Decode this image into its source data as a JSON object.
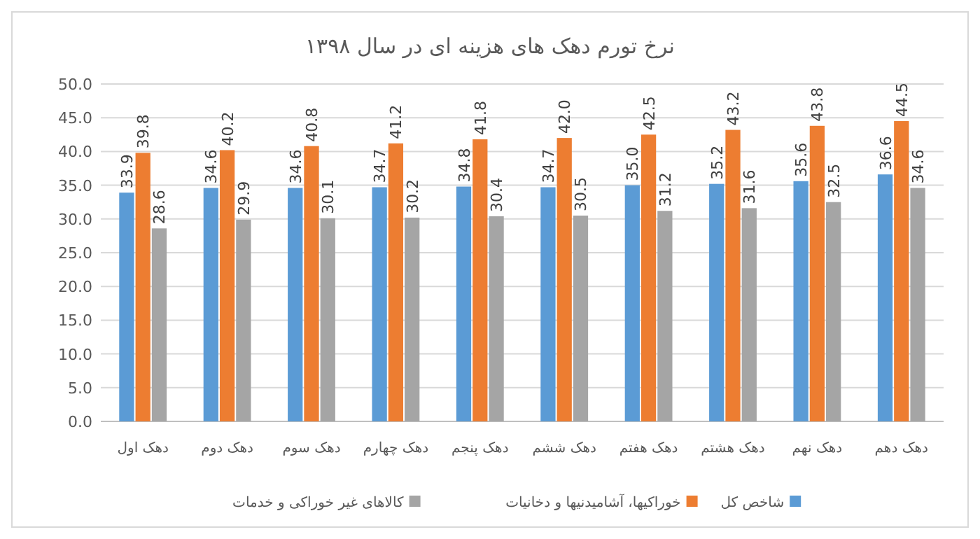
{
  "chart_data": {
    "type": "bar",
    "title": "نرخ تورم دهک های هزینه ای در سال ۱۳۹۸",
    "categories": [
      "دهک اول",
      "دهک دوم",
      "دهک سوم",
      "دهک چهارم",
      "دهک پنجم",
      "دهک ششم",
      "دهک هفتم",
      "دهک هشتم",
      "دهک نهم",
      "دهک دهم"
    ],
    "series": [
      {
        "name": "شاخص کل",
        "color": "#5b9bd5",
        "values": [
          33.9,
          34.6,
          34.6,
          34.7,
          34.8,
          34.7,
          35.0,
          35.2,
          35.6,
          36.6
        ],
        "value_labels": [
          "33.9",
          "34.6",
          "34.6",
          "34.7",
          "34.8",
          "34.7",
          "35.0",
          "35.2",
          "35.6",
          "36.6"
        ]
      },
      {
        "name": "خوراکیها، آشامیدنیها و دخانیات",
        "color": "#ed7d31",
        "values": [
          39.8,
          40.2,
          40.8,
          41.2,
          41.8,
          42.0,
          42.5,
          43.2,
          43.8,
          44.5
        ],
        "value_labels": [
          "39.8",
          "40.2",
          "40.8",
          "41.2",
          "41.8",
          "42.0",
          "42.5",
          "43.2",
          "43.8",
          "44.5"
        ]
      },
      {
        "name": "کالاهای غیر خوراکی و خدمات",
        "color": "#a5a5a5",
        "values": [
          28.6,
          29.9,
          30.1,
          30.2,
          30.4,
          30.5,
          31.2,
          31.6,
          32.5,
          34.6
        ],
        "value_labels": [
          "28.6",
          "29.9",
          "30.1",
          "30.2",
          "30.4",
          "30.5",
          "31.2",
          "31.6",
          "32.5",
          "34.6"
        ]
      }
    ],
    "ylim": [
      0,
      50
    ],
    "yticks": [
      {
        "value": 0,
        "label": "0.0"
      },
      {
        "value": 5,
        "label": "5.0"
      },
      {
        "value": 10,
        "label": "10.0"
      },
      {
        "value": 15,
        "label": "15.0"
      },
      {
        "value": 20,
        "label": "20.0"
      },
      {
        "value": 25,
        "label": "25.0"
      },
      {
        "value": 30,
        "label": "30.0"
      },
      {
        "value": 35,
        "label": "35.0"
      },
      {
        "value": 40,
        "label": "40.0"
      },
      {
        "value": 45,
        "label": "45.0"
      },
      {
        "value": 50,
        "label": "50.0"
      }
    ],
    "grid": "y",
    "legend": "bottom"
  }
}
